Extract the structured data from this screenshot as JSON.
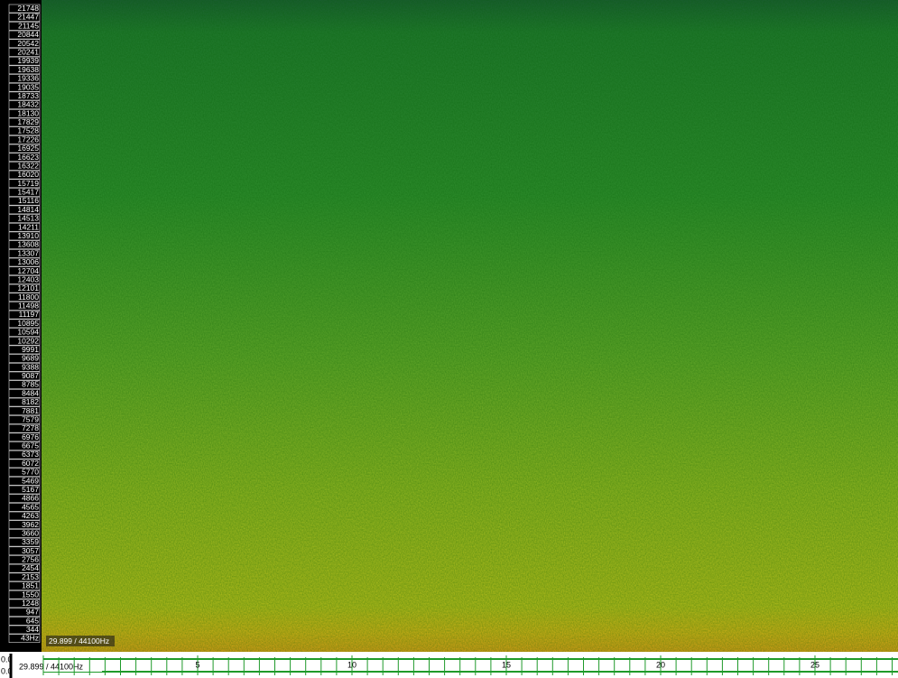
{
  "frequency_labels": [
    "21748",
    "21447",
    "21145",
    "20844",
    "20542",
    "20241",
    "19939",
    "19638",
    "19336",
    "19035",
    "18733",
    "18432",
    "18130",
    "17829",
    "17528",
    "17226",
    "16925",
    "16623",
    "16322",
    "16020",
    "15719",
    "15417",
    "15116",
    "14814",
    "14513",
    "14211",
    "13910",
    "13608",
    "13307",
    "13006",
    "12704",
    "12403",
    "12101",
    "11800",
    "11498",
    "11197",
    "10895",
    "10594",
    "10292",
    "9991",
    "9689",
    "9388",
    "9087",
    "8785",
    "8484",
    "8182",
    "7881",
    "7579",
    "7278",
    "6976",
    "6675",
    "6373",
    "6072",
    "5770",
    "5469",
    "5167",
    "4866",
    "4565",
    "4263",
    "3962",
    "3660",
    "3359",
    "3057",
    "2756",
    "2454",
    "2153",
    "1851",
    "1550",
    "1248",
    "947",
    "645",
    "344",
    "43Hz"
  ],
  "status": "29.899 / 44100Hz",
  "ruler": {
    "level_labels": [
      "0.0",
      "0.0"
    ],
    "status": "29.899 / 44100Hz",
    "time_labels": [
      "5",
      "10",
      "15",
      "20",
      "25"
    ]
  }
}
